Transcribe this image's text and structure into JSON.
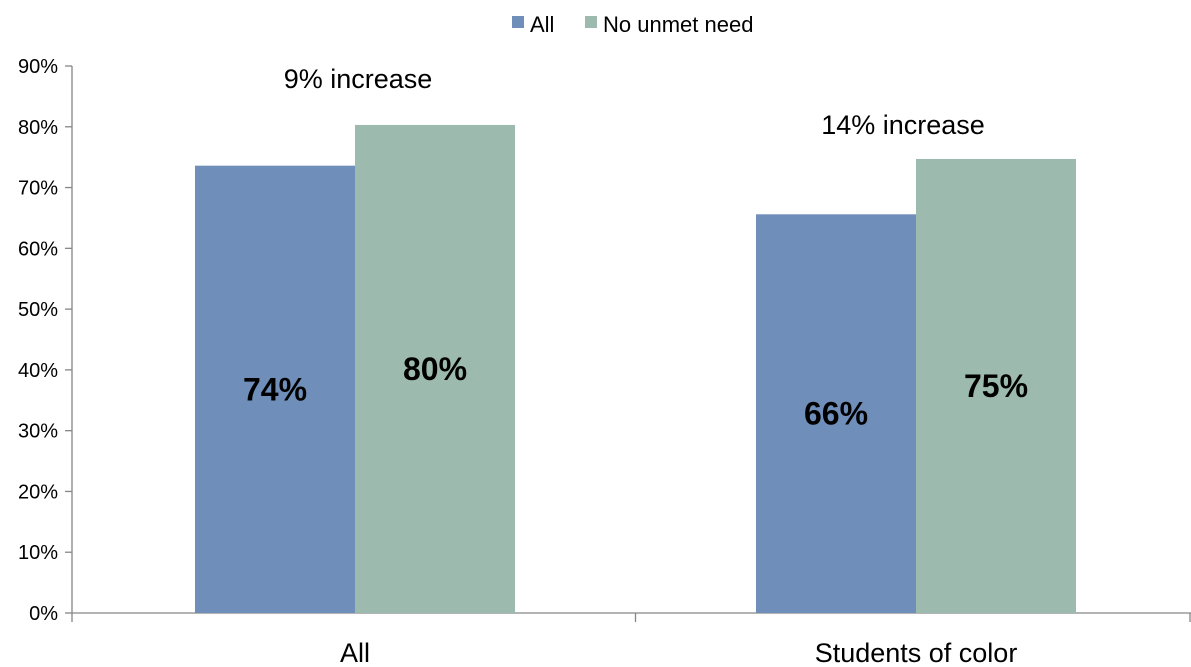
{
  "chart_data": {
    "type": "bar",
    "categories": [
      "All",
      "Students of color"
    ],
    "series": [
      {
        "name": "All",
        "color": "#6f8fba",
        "values": [
          73.6,
          65.6
        ],
        "labels": [
          "74%",
          "66%"
        ]
      },
      {
        "name": "No unmet need",
        "color": "#9dbaaf",
        "values": [
          80.3,
          74.7
        ],
        "labels": [
          "80%",
          "75%"
        ]
      }
    ],
    "ylim": [
      0,
      90
    ],
    "y_ticks": [
      0,
      10,
      20,
      30,
      40,
      50,
      60,
      70,
      80,
      90
    ],
    "y_tick_labels": [
      "0%",
      "10%",
      "20%",
      "30%",
      "40%",
      "50%",
      "60%",
      "70%",
      "80%",
      "90%"
    ],
    "annotations": [
      "9% increase",
      "14% increase"
    ],
    "legend_position": "top-center",
    "grid": false,
    "title": "",
    "xlabel": "",
    "ylabel": ""
  }
}
